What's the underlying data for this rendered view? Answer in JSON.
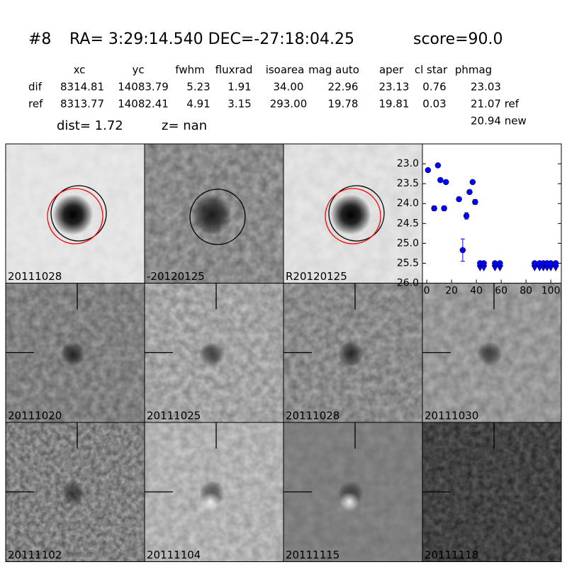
{
  "header": {
    "title": [
      "#8",
      "RA= 3:29:14.540 DEC=-27:18:04.25",
      "score=90.0"
    ]
  },
  "table": {
    "columns": [
      "xc",
      "yc",
      "fwhm",
      "fluxrad",
      "isoarea",
      "mag auto",
      "aper",
      "cl star",
      "phmag"
    ],
    "rows": [
      [
        "dif",
        "8314.81",
        "14083.79",
        "5.23",
        "1.91",
        "34.00",
        "22.96",
        "23.13",
        "0.76",
        "23.03"
      ],
      [
        "ref",
        "8313.77",
        "14082.41",
        "4.91",
        "3.15",
        "293.00",
        "19.78",
        "19.81",
        "0.03",
        "21.07 ref"
      ]
    ],
    "extra": "20.94 new"
  },
  "info": {
    "dist": "dist=  1.72",
    "z": "z=   nan"
  },
  "stamps": [
    {
      "label": "20111028"
    },
    {
      "label": "-20120125"
    },
    {
      "label": "R20120125"
    },
    {
      "label": "20111020"
    },
    {
      "label": "20111025"
    },
    {
      "label": "20111028",
      "color": "#ff0000"
    },
    {
      "label": "20111030"
    },
    {
      "label": "20111102"
    },
    {
      "label": "20111104"
    },
    {
      "label": "20111115"
    },
    {
      "label": "20111118"
    }
  ],
  "chart_data": {
    "type": "scatter",
    "series": [
      {
        "color": "#0000ff",
        "x": [
          1,
          6,
          9,
          11,
          14,
          15.5,
          26,
          29,
          32,
          34.5,
          37,
          39
        ],
        "values": [
          23.16,
          24.12,
          23.04,
          23.41,
          24.12,
          23.46,
          23.89,
          25.17,
          24.31,
          23.71,
          23.46,
          23.96
        ],
        "errors": [
          0.04,
          0.06,
          0.04,
          0.05,
          0.06,
          0.04,
          0.05,
          0.28,
          0.08,
          0.05,
          0.04,
          0.06
        ]
      },
      {
        "color": "#0000ff",
        "marker": "upper-limit",
        "x": [
          43,
          46,
          55,
          59,
          87,
          91,
          94,
          97,
          100,
          104
        ],
        "values": [
          25.5,
          25.5,
          25.5,
          25.5,
          25.5,
          25.5,
          25.5,
          25.5,
          25.5,
          25.5
        ]
      }
    ],
    "xlim": [
      -3.5,
      108.5
    ],
    "ylim": [
      26.0,
      22.5
    ],
    "xticks": [
      0,
      20,
      40,
      60,
      80,
      100
    ],
    "yticks": [
      {
        "value": 23.0,
        "label": "23.0"
      },
      {
        "value": 23.5,
        "label": "23.5"
      },
      {
        "value": 24.0,
        "label": "24.0"
      },
      {
        "value": 24.5,
        "label": "24.5"
      },
      {
        "value": 25.0,
        "label": "25.0"
      },
      {
        "value": 25.5,
        "label": "25.5"
      },
      {
        "value": 26.0,
        "label": "26.0"
      }
    ]
  }
}
